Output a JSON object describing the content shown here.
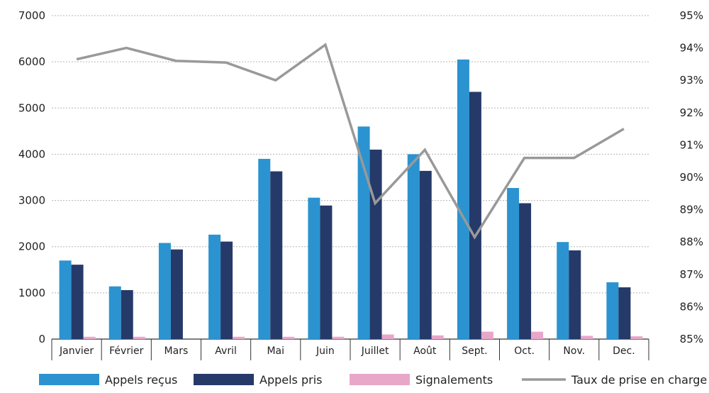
{
  "chart_data": {
    "type": "bar",
    "categories": [
      "Janvier",
      "Février",
      "Mars",
      "Avril",
      "Mai",
      "Juin",
      "Juillet",
      "Août",
      "Sept.",
      "Oct.",
      "Nov.",
      "Dec."
    ],
    "series": [
      {
        "name": "Appels reçus",
        "kind": "bar",
        "axis": "left",
        "color": "#2a93d0",
        "values": [
          1700,
          1140,
          2080,
          2260,
          3900,
          3060,
          4600,
          4000,
          6050,
          3270,
          2100,
          1230
        ]
      },
      {
        "name": "Appels pris",
        "kind": "bar",
        "axis": "left",
        "color": "#263a69",
        "values": [
          1610,
          1060,
          1940,
          2110,
          3630,
          2890,
          4100,
          3640,
          5350,
          2940,
          1920,
          1120
        ]
      },
      {
        "name": "Signalements",
        "kind": "bar",
        "axis": "left",
        "color": "#e8a6c8",
        "values": [
          50,
          50,
          0,
          50,
          50,
          50,
          100,
          80,
          160,
          160,
          70,
          60
        ]
      },
      {
        "name": "Taux de prise en charge",
        "kind": "line",
        "axis": "right",
        "color": "#999999",
        "values": [
          93.65,
          94.0,
          93.6,
          93.55,
          93.0,
          94.1,
          89.2,
          90.85,
          88.15,
          90.6,
          90.6,
          91.5
        ]
      }
    ],
    "y_left": {
      "lim": [
        0,
        7000
      ],
      "ticks": [
        "0",
        "1000",
        "2000",
        "3000",
        "4000",
        "5000",
        "6000",
        "7000"
      ]
    },
    "y_right": {
      "lim": [
        85,
        95
      ],
      "ticks": [
        "85%",
        "86%",
        "87%",
        "88%",
        "89%",
        "90%",
        "91%",
        "92%",
        "93%",
        "94%",
        "95%"
      ]
    },
    "grid": "horizontal dotted",
    "legend_position": "bottom",
    "title": "",
    "xlabel": "",
    "ylabel": ""
  }
}
